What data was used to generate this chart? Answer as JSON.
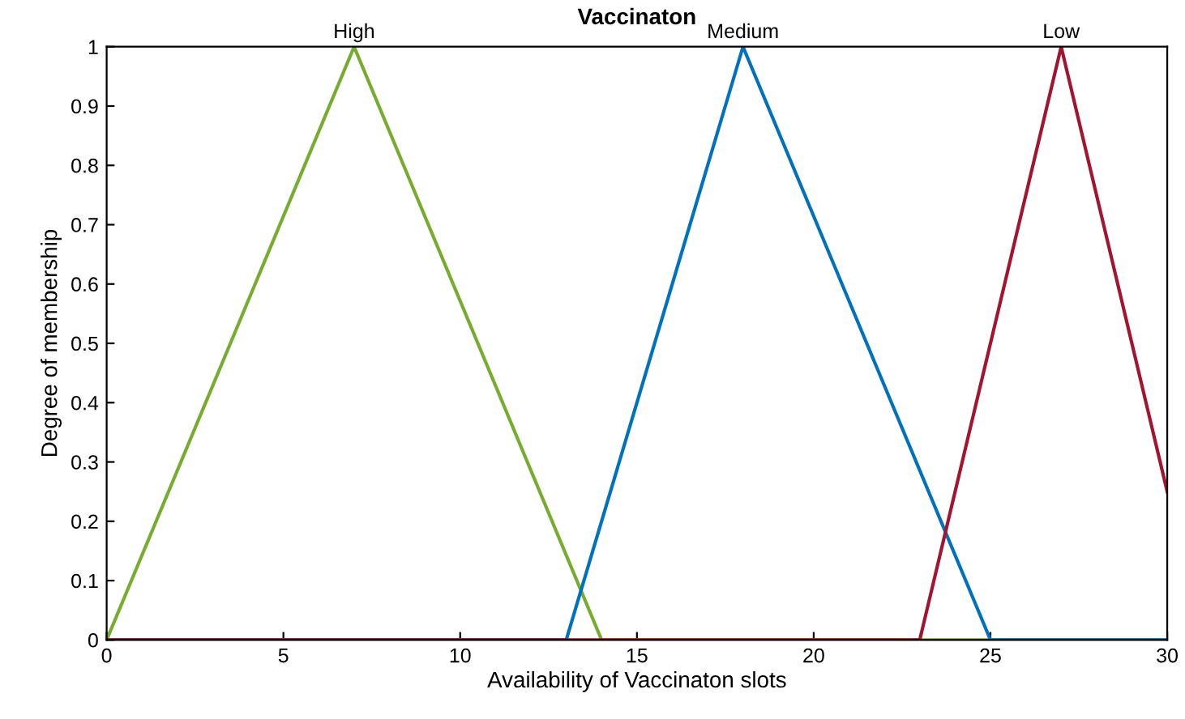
{
  "chart_data": {
    "type": "line",
    "title": "Vaccinaton",
    "xlabel": "Availability of Vaccinaton slots",
    "ylabel": "Degree of membership",
    "series": [
      {
        "name": "High",
        "color": "#77ac30",
        "x": [
          0,
          7,
          14,
          30
        ],
        "values": [
          0,
          1,
          0,
          0
        ]
      },
      {
        "name": "Medium",
        "color": "#0072bd",
        "x": [
          0,
          13,
          18,
          25,
          30
        ],
        "values": [
          0,
          0,
          1,
          0,
          0
        ]
      },
      {
        "name": "Low",
        "color": "#a2142f",
        "x": [
          0,
          23,
          27,
          30
        ],
        "values": [
          0,
          0,
          1,
          0.25
        ]
      }
    ],
    "xlim": [
      0,
      30
    ],
    "xticks": [
      0,
      5,
      10,
      15,
      20,
      25,
      30
    ],
    "ylim": [
      0,
      1
    ],
    "yticks": [
      0,
      0.1,
      0.2,
      0.3,
      0.4,
      0.5,
      0.6,
      0.7,
      0.8,
      0.9,
      1
    ],
    "grid": false,
    "legend": false,
    "marker": "none",
    "line_style": "solid"
  }
}
